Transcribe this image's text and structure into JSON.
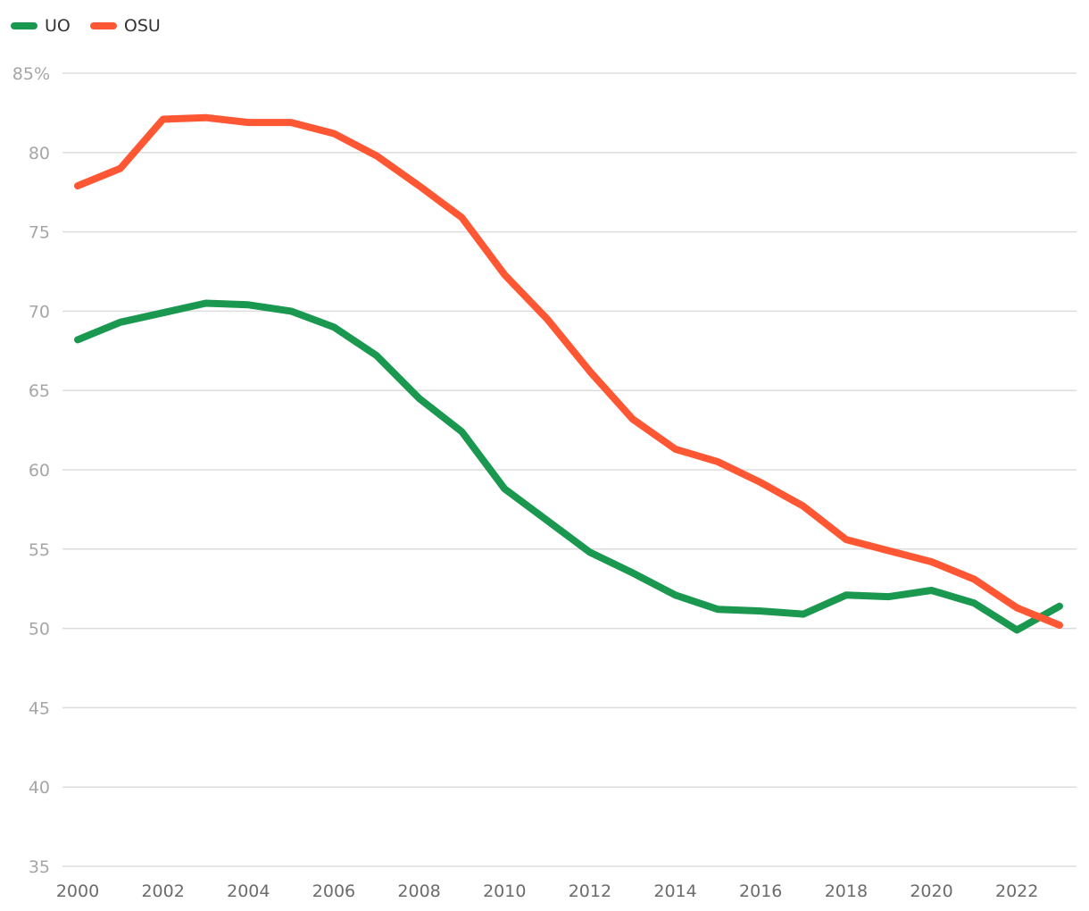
{
  "chart_data": {
    "type": "line",
    "title": "",
    "xlabel": "",
    "ylabel": "",
    "x": [
      2000,
      2001,
      2002,
      2003,
      2004,
      2005,
      2006,
      2007,
      2008,
      2009,
      2010,
      2011,
      2012,
      2013,
      2014,
      2015,
      2016,
      2017,
      2018,
      2019,
      2020,
      2021,
      2022,
      2023
    ],
    "xlim": [
      2000,
      2023
    ],
    "ylim": [
      35,
      85
    ],
    "yticks": [
      35,
      40,
      45,
      50,
      55,
      60,
      65,
      70,
      75,
      80,
      85
    ],
    "ytick_labels": [
      "35",
      "40",
      "45",
      "50",
      "55",
      "60",
      "65",
      "70",
      "75",
      "80",
      "85%"
    ],
    "xticks": [
      2000,
      2002,
      2004,
      2006,
      2008,
      2010,
      2012,
      2014,
      2016,
      2018,
      2020,
      2022
    ],
    "xtick_labels": [
      "2000",
      "2002",
      "2004",
      "2006",
      "2008",
      "2010",
      "2012",
      "2014",
      "2016",
      "2018",
      "2020",
      "2022"
    ],
    "grid": true,
    "legend_position": "top-left",
    "series": [
      {
        "name": "UO",
        "color": "#1a9850",
        "values": [
          68.2,
          69.3,
          69.9,
          70.5,
          70.4,
          70.0,
          69.0,
          67.2,
          64.5,
          62.4,
          58.8,
          56.8,
          54.8,
          53.5,
          52.1,
          51.2,
          51.1,
          50.9,
          52.1,
          52.0,
          52.4,
          51.6,
          49.9,
          51.4
        ]
      },
      {
        "name": "OSU",
        "color": "#ff5733",
        "values": [
          77.9,
          79.0,
          82.1,
          82.2,
          81.9,
          81.9,
          81.2,
          79.8,
          77.9,
          75.9,
          72.3,
          69.5,
          66.2,
          63.2,
          61.3,
          60.5,
          59.2,
          57.7,
          55.6,
          54.9,
          54.2,
          53.1,
          51.3,
          50.2
        ]
      }
    ]
  }
}
